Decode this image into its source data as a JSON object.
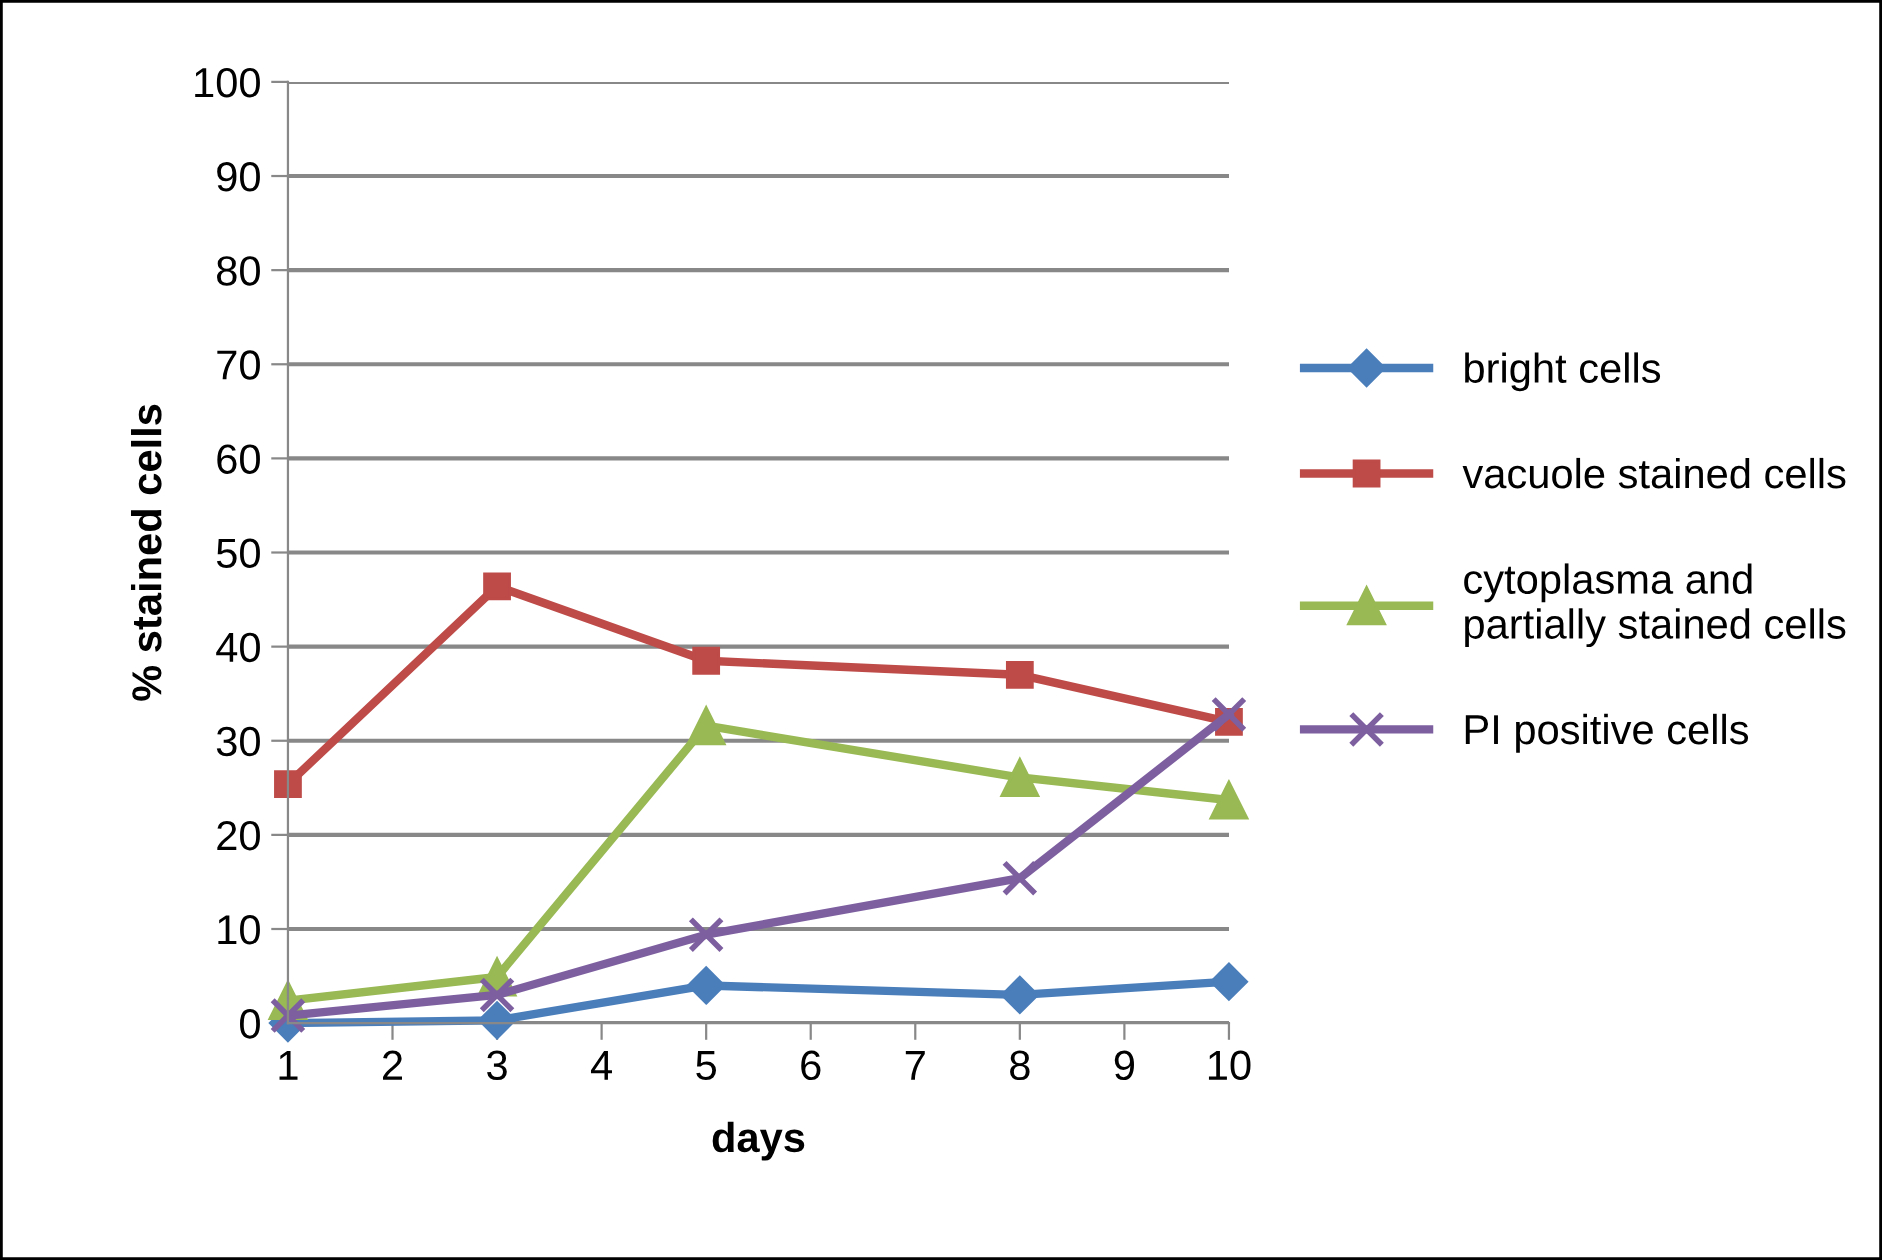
{
  "chart_data": {
    "type": "line",
    "xlabel": "days",
    "ylabel": "% stained cells",
    "x": [
      1,
      3,
      5,
      8,
      10
    ],
    "xlim": [
      1,
      10
    ],
    "xticks": [
      1,
      2,
      3,
      4,
      5,
      6,
      7,
      8,
      9,
      10
    ],
    "ylim": [
      0,
      100
    ],
    "yticks": [
      0,
      10,
      20,
      30,
      40,
      50,
      60,
      70,
      80,
      90,
      100
    ],
    "grid": "y",
    "legend": "right",
    "line_style": "solid",
    "series": [
      {
        "name": "bright cells",
        "color": "#4a7ebb",
        "marker": "diamond",
        "values": [
          0,
          0.3,
          4.0,
          3.0,
          4.4
        ]
      },
      {
        "name": "vacuole stained cells",
        "color": "#be4b48",
        "marker": "square",
        "values": [
          25.4,
          46.4,
          38.5,
          37.0,
          32.0
        ]
      },
      {
        "name": "cytoplasma and\npartially stained cells",
        "color": "#98b954",
        "marker": "triangle",
        "values": [
          2.4,
          4.9,
          31.6,
          26.1,
          23.7
        ]
      },
      {
        "name": "PI positive cells",
        "color": "#7d5fa0",
        "marker": "cross",
        "values": [
          0.8,
          3.0,
          9.4,
          15.4,
          32.8
        ]
      }
    ]
  }
}
